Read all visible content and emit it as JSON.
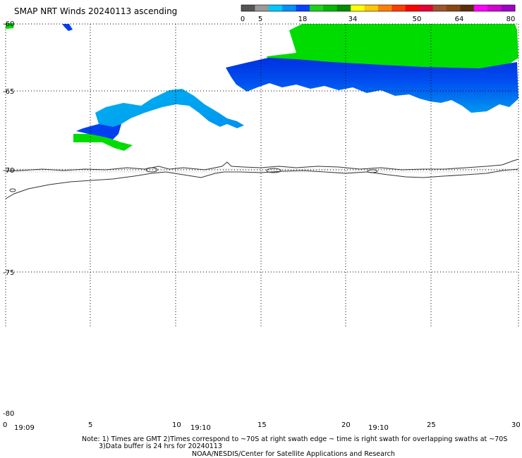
{
  "title": "SMAP NRT Winds 20240113 ascending",
  "colorbar": {
    "ticks": [
      "0",
      "5",
      "18",
      "34",
      "50",
      "64",
      "80"
    ],
    "colors": [
      "#555555",
      "#9a9a9a",
      "#00c8ff",
      "#0090ff",
      "#0044ff",
      "#1ad21a",
      "#00b800",
      "#008c00",
      "#ffff00",
      "#ffc800",
      "#ff8000",
      "#ff3c00",
      "#ff0000",
      "#e60032",
      "#a0522d",
      "#8b4513",
      "#5a2d0c",
      "#ff00ff",
      "#d200d2",
      "#a000c8"
    ]
  },
  "axes": {
    "lat_ticks": [
      "-60",
      "-65",
      "-70",
      "-75",
      "-80"
    ],
    "lon_ticks": [
      "0",
      "5",
      "10",
      "15",
      "20",
      "25",
      "30"
    ]
  },
  "times": [
    "19:09",
    "19:10",
    "19:10"
  ],
  "notes": {
    "line1": "Note: 1) Times are GMT 2)Times correspond to ~70S at right swath edge ~ time is right swath for overlapping swaths at ~70S",
    "line2": "3)Data buffer is 24 hrs for 20240113",
    "line3": "NOAA/NESDIS/Center for Satellite Applications and Research"
  },
  "swath_colors": {
    "green": "#00dc00",
    "blue": "#0038f0",
    "light_blue": "#00a8f0",
    "mid_blue": "#0070f0"
  }
}
